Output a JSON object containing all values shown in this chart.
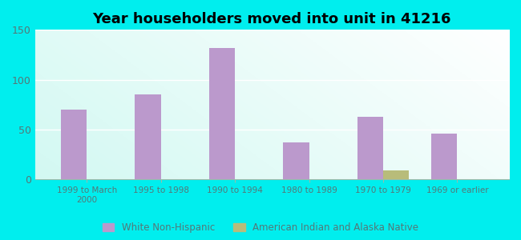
{
  "title": "Year householders moved into unit in 41216",
  "categories": [
    "1999 to March\n2000",
    "1995 to 1998",
    "1990 to 1994",
    "1980 to 1989",
    "1970 to 1979",
    "1969 or earlier"
  ],
  "white_non_hispanic": [
    70,
    85,
    132,
    37,
    63,
    46
  ],
  "american_indian": [
    0,
    0,
    0,
    0,
    9,
    0
  ],
  "bar_color_white": "#bb99cc",
  "bar_color_indian": "#b8bc7a",
  "background_outer": "#00eeee",
  "ylim": [
    0,
    150
  ],
  "yticks": [
    0,
    50,
    100,
    150
  ],
  "bar_width": 0.35,
  "tick_color": "#557777",
  "legend_labels": [
    "White Non-Hispanic",
    "American Indian and Alaska Native"
  ]
}
